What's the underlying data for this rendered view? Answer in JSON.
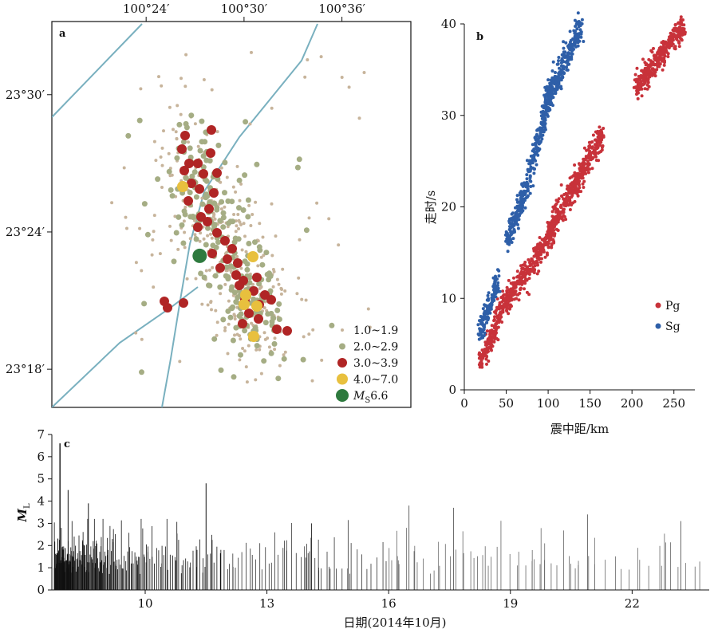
{
  "chart_data": [
    {
      "panel": "a",
      "type": "scatter",
      "x_ticks": [
        "100°24′",
        "100°30′",
        "100°36′"
      ],
      "y_ticks": [
        "23°30′",
        "23°24′",
        "23°18′"
      ],
      "legend": [
        "1.0~1.9",
        "2.0~2.9",
        "3.0~3.9",
        "4.0~7.0",
        "6.6"
      ],
      "legend_prefix": "M",
      "legend_sub": "S",
      "colors": {
        "m1": "#c7b49b",
        "m2": "#a5ad84",
        "m3": "#b02525",
        "m4": "#e8c03e",
        "ms": "#2e7a3e",
        "fault": "#79b0bf"
      },
      "mainshock": {
        "lon": 100.4547,
        "lat": 23.3826,
        "mag": 6.6
      }
    },
    {
      "panel": "b",
      "type": "scatter",
      "xlabel": "震中距/km",
      "ylabel": "走时/s",
      "xlim": [
        0,
        275
      ],
      "ylim": [
        0,
        40
      ],
      "x_ticks": [
        "0",
        "50",
        "100",
        "150",
        "200",
        "250"
      ],
      "y_ticks": [
        "0",
        "10",
        "20",
        "30",
        "40"
      ],
      "series": [
        {
          "name": "Pg",
          "color": "#c8323a",
          "clusters": [
            {
              "x": [
                18,
                38
              ],
              "y": [
                3,
                7
              ]
            },
            {
              "x": [
                38,
                75
              ],
              "y": [
                8,
                13
              ]
            },
            {
              "x": [
                78,
                108
              ],
              "y": [
                13,
                18
              ]
            },
            {
              "x": [
                100,
                135
              ],
              "y": [
                17,
                23
              ]
            },
            {
              "x": [
                130,
                165
              ],
              "y": [
                22,
                28
              ]
            },
            {
              "x": [
                205,
                262
              ],
              "y": [
                33,
                40
              ]
            }
          ]
        },
        {
          "name": "Sg",
          "color": "#2e5fa8",
          "clusters": [
            {
              "x": [
                18,
                40
              ],
              "y": [
                6,
                12
              ]
            },
            {
              "x": [
                50,
                78
              ],
              "y": [
                16,
                23
              ]
            },
            {
              "x": [
                78,
                105
              ],
              "y": [
                24,
                33
              ]
            },
            {
              "x": [
                95,
                140
              ],
              "y": [
                31,
                40
              ]
            }
          ]
        }
      ]
    },
    {
      "panel": "c",
      "type": "bar",
      "xlabel": "日期(2014年10月)",
      "ylabel": "M",
      "ylabel_sub": "L",
      "ylim": [
        0,
        7
      ],
      "xlim": [
        7.7,
        23.9
      ],
      "x_ticks": [
        "10",
        "13",
        "16",
        "19",
        "22"
      ],
      "y_ticks": [
        "0",
        "1",
        "2",
        "3",
        "4",
        "5",
        "6",
        "7"
      ],
      "mainshock_day": 7.9,
      "mainshock_value": 6.6,
      "peaks": [
        {
          "day": 8.1,
          "value": 4.5
        },
        {
          "day": 8.6,
          "value": 3.9
        },
        {
          "day": 11.5,
          "value": 4.8
        },
        {
          "day": 14.1,
          "value": 3.0
        },
        {
          "day": 16.5,
          "value": 3.8
        },
        {
          "day": 17.6,
          "value": 3.7
        },
        {
          "day": 20.9,
          "value": 3.4
        },
        {
          "day": 23.2,
          "value": 3.1
        }
      ]
    }
  ]
}
